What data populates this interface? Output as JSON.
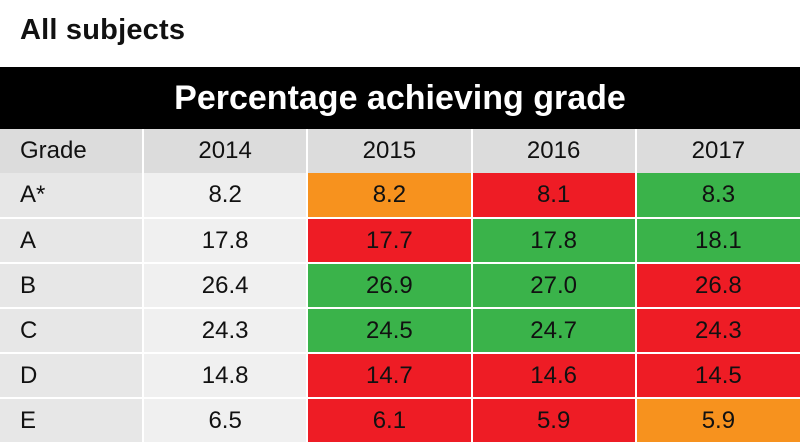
{
  "header": {
    "subtitle": "All subjects",
    "title": "Percentage achieving grade"
  },
  "colors": {
    "increase": "#3ab34a",
    "decrease": "#ee1c25",
    "no_change": "#f7921e",
    "baseline": "#f0f0f0",
    "header_bg": "#000000"
  },
  "chart_data": {
    "type": "table",
    "title": "Percentage achieving grade",
    "columns": [
      "Grade",
      "2014",
      "2015",
      "2016",
      "2017"
    ],
    "rows": [
      {
        "grade": "A*",
        "values": [
          "8.2",
          "8.2",
          "8.1",
          "8.3"
        ],
        "status": [
          "base",
          "orange",
          "red",
          "green"
        ]
      },
      {
        "grade": "A",
        "values": [
          "17.8",
          "17.7",
          "17.8",
          "18.1"
        ],
        "status": [
          "base",
          "red",
          "green",
          "green"
        ]
      },
      {
        "grade": "B",
        "values": [
          "26.4",
          "26.9",
          "27.0",
          "26.8"
        ],
        "status": [
          "base",
          "green",
          "green",
          "red"
        ]
      },
      {
        "grade": "C",
        "values": [
          "24.3",
          "24.5",
          "24.7",
          "24.3"
        ],
        "status": [
          "base",
          "green",
          "green",
          "red"
        ]
      },
      {
        "grade": "D",
        "values": [
          "14.8",
          "14.7",
          "14.6",
          "14.5"
        ],
        "status": [
          "base",
          "red",
          "red",
          "red"
        ]
      },
      {
        "grade": "E",
        "values": [
          "6.5",
          "6.1",
          "5.9",
          "5.9"
        ],
        "status": [
          "base",
          "red",
          "red",
          "orange"
        ]
      }
    ]
  }
}
